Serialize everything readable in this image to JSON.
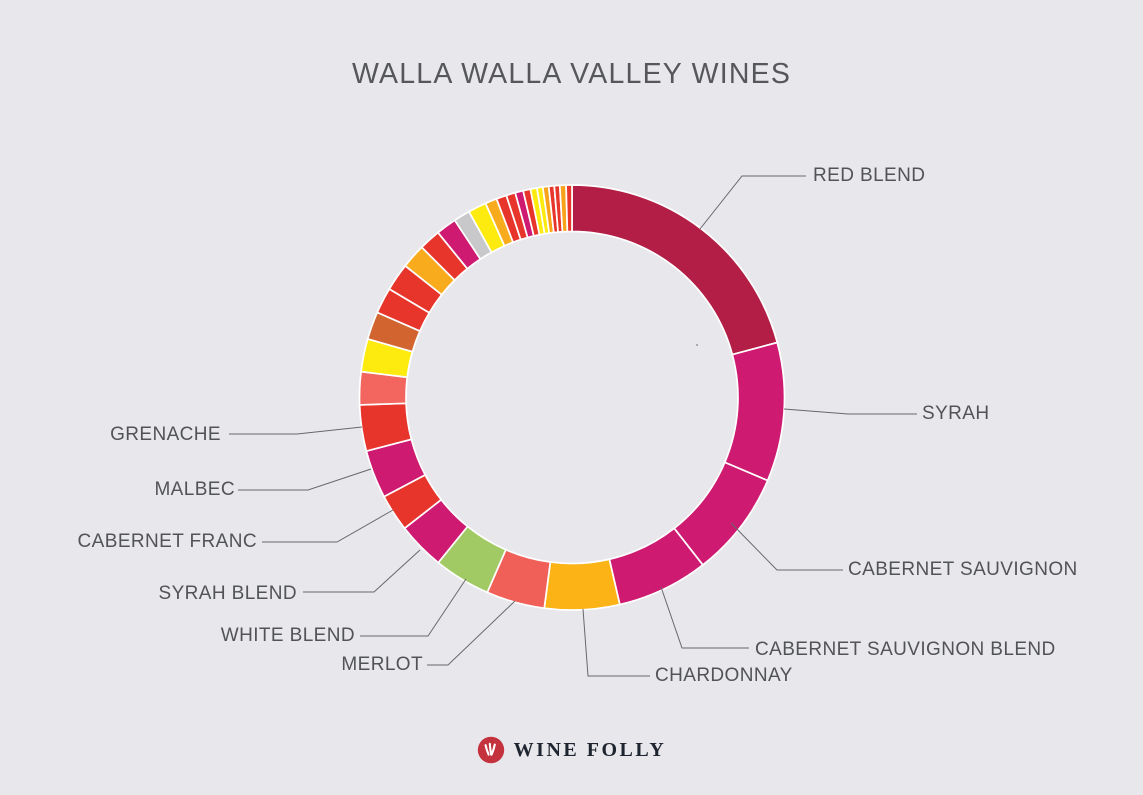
{
  "page": {
    "title": "WALLA WALLA VALLEY WINES",
    "background": "#e8e8ec"
  },
  "chart_data": {
    "type": "pie",
    "variant": "donut",
    "title": "WALLA WALLA VALLEY WINES",
    "legend_position": "radial-callout-labels",
    "segments": [
      {
        "label": "RED BLEND",
        "color": "#b21e45",
        "start_deg": 0,
        "end_deg": 75,
        "pct": 20.8
      },
      {
        "label": "SYRAH",
        "color": "#ce1a70",
        "start_deg": 75,
        "end_deg": 113,
        "pct": 10.6
      },
      {
        "label": "CABERNET SAUVIGNON",
        "color": "#ce1a70",
        "start_deg": 113,
        "end_deg": 142,
        "pct": 8.1
      },
      {
        "label": "CABERNET SAUVIGNON BLEND",
        "color": "#ce1a70",
        "start_deg": 142,
        "end_deg": 167,
        "pct": 6.9
      },
      {
        "label": "CHARDONNAY",
        "color": "#fcb316",
        "start_deg": 167,
        "end_deg": 187.5,
        "pct": 5.7
      },
      {
        "label": "MERLOT",
        "color": "#f05f58",
        "start_deg": 187.5,
        "end_deg": 203.5,
        "pct": 4.4
      },
      {
        "label": "WHITE BLEND",
        "color": "#a1ca64",
        "start_deg": 203.5,
        "end_deg": 219,
        "pct": 4.3
      },
      {
        "label": "SYRAH BLEND",
        "color": "#ce1a70",
        "start_deg": 219,
        "end_deg": 232,
        "pct": 3.6
      },
      {
        "label": "CABERNET FRANC",
        "color": "#e8352c",
        "start_deg": 232,
        "end_deg": 242.2,
        "pct": 2.8
      },
      {
        "label": "MALBEC",
        "color": "#ce1a70",
        "start_deg": 242.2,
        "end_deg": 255.4,
        "pct": 3.7
      },
      {
        "label": "GRENACHE",
        "color": "#e8352c",
        "start_deg": 255.4,
        "end_deg": 268,
        "pct": 3.5
      },
      {
        "label": "",
        "color": "#f2665f",
        "start_deg": 268,
        "end_deg": 277,
        "pct": 2.5
      },
      {
        "label": "",
        "color": "#fdea0f",
        "start_deg": 277,
        "end_deg": 286,
        "pct": 2.5
      },
      {
        "label": "",
        "color": "#d2642f",
        "start_deg": 286,
        "end_deg": 293.6,
        "pct": 2.1
      },
      {
        "label": "",
        "color": "#e8352c",
        "start_deg": 293.6,
        "end_deg": 300.7,
        "pct": 2.0
      },
      {
        "label": "",
        "color": "#e8352c",
        "start_deg": 300.7,
        "end_deg": 308.3,
        "pct": 2.1
      },
      {
        "label": "",
        "color": "#f9ab1e",
        "start_deg": 308.3,
        "end_deg": 315,
        "pct": 1.9
      },
      {
        "label": "",
        "color": "#e8352c",
        "start_deg": 315,
        "end_deg": 320.9,
        "pct": 1.6
      },
      {
        "label": "",
        "color": "#ce1a70",
        "start_deg": 320.9,
        "end_deg": 326.5,
        "pct": 1.6
      },
      {
        "label": "",
        "color": "#c8c8ca",
        "start_deg": 326.5,
        "end_deg": 331,
        "pct": 1.3
      },
      {
        "label": "",
        "color": "#fdea0f",
        "start_deg": 331,
        "end_deg": 336,
        "pct": 1.4
      },
      {
        "label": "",
        "color": "#f9ab1e",
        "start_deg": 336,
        "end_deg": 339.2,
        "pct": 0.9
      },
      {
        "label": "",
        "color": "#e8352c",
        "start_deg": 339.2,
        "end_deg": 342,
        "pct": 0.8
      },
      {
        "label": "",
        "color": "#e8352c",
        "start_deg": 342,
        "end_deg": 344.5,
        "pct": 0.7
      },
      {
        "label": "",
        "color": "#ce1a70",
        "start_deg": 344.5,
        "end_deg": 346.7,
        "pct": 0.6
      },
      {
        "label": "",
        "color": "#e8352c",
        "start_deg": 346.7,
        "end_deg": 348.7,
        "pct": 0.6
      },
      {
        "label": "",
        "color": "#fdea0f",
        "start_deg": 348.7,
        "end_deg": 350.5,
        "pct": 0.5
      },
      {
        "label": "",
        "color": "#fdea0f",
        "start_deg": 350.5,
        "end_deg": 352.1,
        "pct": 0.4
      },
      {
        "label": "",
        "color": "#f9a21b",
        "start_deg": 352.1,
        "end_deg": 353.7,
        "pct": 0.4
      },
      {
        "label": "",
        "color": "#e8352c",
        "start_deg": 353.7,
        "end_deg": 355.2,
        "pct": 0.4
      },
      {
        "label": "",
        "color": "#e8352c",
        "start_deg": 355.2,
        "end_deg": 356.7,
        "pct": 0.4
      },
      {
        "label": "",
        "color": "#f9a21b",
        "start_deg": 356.7,
        "end_deg": 358.4,
        "pct": 0.5
      },
      {
        "label": "",
        "color": "#e8352c",
        "start_deg": 358.4,
        "end_deg": 360,
        "pct": 0.4
      }
    ]
  },
  "footer": {
    "brand_name": "WINE FOLLY",
    "brand_icon": "wine-folly-badge",
    "badge_color": "#c4323e",
    "text_color": "#1f2530"
  }
}
